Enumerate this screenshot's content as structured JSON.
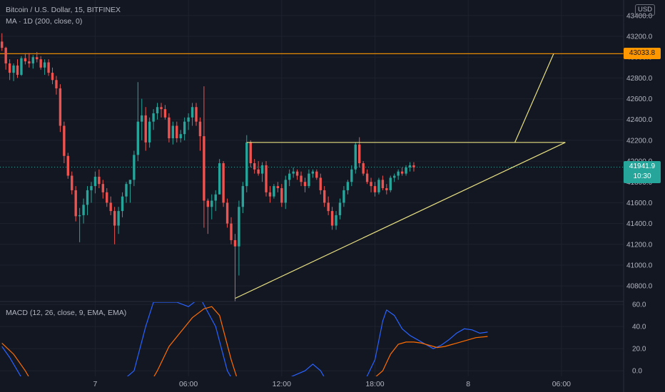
{
  "header": {
    "symbol_line": "Bitcoin / U.S. Dollar, 15, BITFINEX",
    "ma_line": "MA · 1D (200, close, 0)",
    "macd_line": "MACD (12, 26, close, 9, EMA, EMA)",
    "currency": "USD"
  },
  "price_tags": {
    "level_value": "43033.8",
    "current_price": "41941.9",
    "countdown": "10:30"
  },
  "colors": {
    "background": "#131722",
    "grid": "#1e222d",
    "up_candle": "#26a69a",
    "down_candle": "#ef5350",
    "horizontal_line": "#ff9800",
    "trend_lines": "#e8e082",
    "macd_line": "#2962ff",
    "signal_line": "#ff6d00"
  },
  "chart_data": [
    {
      "type": "candlestick",
      "y_axis_ticks": [
        "43400.0",
        "43200.0",
        "43000.0",
        "42800.0",
        "42600.0",
        "42400.0",
        "42200.0",
        "42000.0",
        "41800.0",
        "41600.0",
        "41400.0",
        "41200.0",
        "41000.0",
        "40800.0"
      ],
      "ylim": [
        40650,
        43550
      ],
      "x_axis_ticks": [
        {
          "label": "7",
          "index": 24
        },
        {
          "label": "06:00",
          "index": 48
        },
        {
          "label": "12:00",
          "index": 72
        },
        {
          "label": "18:00",
          "index": 96
        },
        {
          "label": "8",
          "index": 120
        },
        {
          "label": "06:00",
          "index": 144
        }
      ],
      "xlim": [
        -0.5,
        160
      ],
      "candles": [
        [
          43150,
          43230,
          43060,
          43090
        ],
        [
          43090,
          43100,
          42880,
          42940
        ],
        [
          42940,
          42980,
          42780,
          42850
        ],
        [
          42850,
          42940,
          42770,
          42920
        ],
        [
          42920,
          42980,
          42800,
          42830
        ],
        [
          42830,
          43010,
          42820,
          42990
        ],
        [
          42990,
          43040,
          42930,
          42960
        ],
        [
          42960,
          43040,
          42900,
          42940
        ],
        [
          42940,
          43020,
          42890,
          43000
        ],
        [
          43000,
          43050,
          42950,
          42980
        ],
        [
          42980,
          43010,
          42880,
          42900
        ],
        [
          42900,
          42980,
          42830,
          42950
        ],
        [
          42950,
          42980,
          42820,
          42850
        ],
        [
          42850,
          42900,
          42740,
          42780
        ],
        [
          42780,
          42820,
          42640,
          42700
        ],
        [
          42700,
          42740,
          42280,
          42340
        ],
        [
          42340,
          42380,
          41980,
          42050
        ],
        [
          42050,
          42080,
          41830,
          41860
        ],
        [
          41860,
          41900,
          41680,
          41720
        ],
        [
          41720,
          41760,
          41420,
          41470
        ],
        [
          41470,
          41550,
          41220,
          41480
        ],
        [
          41480,
          41640,
          41400,
          41580
        ],
        [
          41580,
          41760,
          41480,
          41720
        ],
        [
          41720,
          41800,
          41600,
          41760
        ],
        [
          41760,
          41900,
          41690,
          41850
        ],
        [
          41850,
          41920,
          41740,
          41780
        ],
        [
          41780,
          41820,
          41640,
          41700
        ],
        [
          41700,
          41740,
          41560,
          41600
        ],
        [
          41600,
          41660,
          41480,
          41520
        ],
        [
          41520,
          41560,
          41200,
          41380
        ],
        [
          41380,
          41560,
          41300,
          41520
        ],
        [
          41520,
          41700,
          41460,
          41660
        ],
        [
          41660,
          41800,
          41600,
          41780
        ],
        [
          41780,
          41820,
          41600,
          41820
        ],
        [
          41820,
          42100,
          41760,
          42060
        ],
        [
          42060,
          42760,
          42000,
          42380
        ],
        [
          42380,
          42600,
          42200,
          42440
        ],
        [
          42440,
          42520,
          42100,
          42180
        ],
        [
          42180,
          42420,
          42130,
          42380
        ],
        [
          42380,
          42500,
          42300,
          42460
        ],
        [
          42460,
          42560,
          42400,
          42520
        ],
        [
          42520,
          42560,
          42420,
          42500
        ],
        [
          42500,
          42540,
          42400,
          42420
        ],
        [
          42420,
          42460,
          42180,
          42220
        ],
        [
          42220,
          42380,
          42160,
          42340
        ],
        [
          42340,
          42380,
          42180,
          42220
        ],
        [
          42220,
          42300,
          42180,
          42260
        ],
        [
          42260,
          42420,
          42200,
          42380
        ],
        [
          42380,
          42460,
          42300,
          42420
        ],
        [
          42420,
          42560,
          42340,
          42520
        ],
        [
          42520,
          42560,
          42340,
          42380
        ],
        [
          42380,
          42420,
          42100,
          42240
        ],
        [
          42240,
          42720,
          41360,
          41620
        ],
        [
          41620,
          41640,
          41300,
          41560
        ],
        [
          41560,
          41680,
          41440,
          41620
        ],
        [
          41620,
          41720,
          41520,
          41680
        ],
        [
          41680,
          42020,
          41680,
          41980
        ],
        [
          41980,
          42000,
          41560,
          41600
        ],
        [
          41600,
          41640,
          41360,
          41400
        ],
        [
          41400,
          41460,
          41200,
          41240
        ],
        [
          41240,
          41300,
          40650,
          41180
        ],
        [
          41180,
          41620,
          40900,
          41560
        ],
        [
          41560,
          41800,
          41500,
          41760
        ],
        [
          41760,
          42250,
          41700,
          42180
        ],
        [
          42180,
          42200,
          41940,
          41980
        ],
        [
          41980,
          42020,
          41880,
          41920
        ],
        [
          41920,
          42000,
          41860,
          41880
        ],
        [
          41880,
          41990,
          41800,
          41960
        ],
        [
          41960,
          42000,
          41660,
          41700
        ],
        [
          41700,
          41760,
          41600,
          41660
        ],
        [
          41660,
          41780,
          41640,
          41760
        ],
        [
          41760,
          41800,
          41700,
          41740
        ],
        [
          41740,
          41780,
          41560,
          41600
        ],
        [
          41600,
          41860,
          41540,
          41820
        ],
        [
          41820,
          41920,
          41760,
          41880
        ],
        [
          41880,
          41940,
          41840,
          41900
        ],
        [
          41900,
          41920,
          41820,
          41860
        ],
        [
          41860,
          41900,
          41760,
          41800
        ],
        [
          41800,
          41840,
          41700,
          41760
        ],
        [
          41760,
          41920,
          41740,
          41880
        ],
        [
          41880,
          41920,
          41840,
          41900
        ],
        [
          41900,
          41920,
          41820,
          41840
        ],
        [
          41840,
          41880,
          41680,
          41720
        ],
        [
          41720,
          41760,
          41560,
          41600
        ],
        [
          41600,
          41660,
          41480,
          41520
        ],
        [
          41520,
          41560,
          41340,
          41380
        ],
        [
          41380,
          41520,
          41340,
          41480
        ],
        [
          41480,
          41640,
          41440,
          41600
        ],
        [
          41600,
          41760,
          41560,
          41720
        ],
        [
          41720,
          41820,
          41680,
          41800
        ],
        [
          41800,
          41960,
          41760,
          41920
        ],
        [
          41920,
          42180,
          41880,
          42160
        ],
        [
          42160,
          42230,
          41940,
          41980
        ],
        [
          41980,
          42000,
          41860,
          41880
        ],
        [
          41880,
          41920,
          41780,
          41800
        ],
        [
          41800,
          41840,
          41700,
          41760
        ],
        [
          41760,
          41800,
          41660,
          41700
        ],
        [
          41700,
          41840,
          41680,
          41820
        ],
        [
          41820,
          41860,
          41720,
          41740
        ],
        [
          41740,
          41780,
          41680,
          41720
        ],
        [
          41720,
          41860,
          41700,
          41840
        ],
        [
          41840,
          41880,
          41800,
          41860
        ],
        [
          41860,
          41920,
          41820,
          41900
        ],
        [
          41900,
          41940,
          41860,
          41880
        ],
        [
          41880,
          41960,
          41860,
          41940
        ],
        [
          41940,
          41990,
          41900,
          41960
        ],
        [
          41960,
          41990,
          41900,
          41940
        ]
      ],
      "horizontal_levels": [
        43033.8
      ],
      "current_price": 41941.9,
      "trend_lines": [
        {
          "from": [
            60,
            40680
          ],
          "to": [
            145,
            42180
          ]
        },
        {
          "from": [
            63,
            42180
          ],
          "to": [
            145,
            42180
          ]
        },
        {
          "from": [
            132,
            42180
          ],
          "to": [
            142,
            43033.8
          ]
        }
      ]
    },
    {
      "type": "line",
      "name": "MACD (12, 26, close, 9, EMA, EMA)",
      "y_axis_ticks": [
        "60.0",
        "40.0",
        "20.0",
        "0.0"
      ],
      "ylim": [
        -5,
        62
      ],
      "series": [
        {
          "name": "MACD",
          "points": [
            [
              0,
              22
            ],
            [
              2,
              12
            ],
            [
              4,
              0
            ],
            [
              6,
              -12
            ],
            [
              30,
              -12
            ],
            [
              34,
              0
            ],
            [
              37,
              40
            ],
            [
              39,
              62
            ],
            [
              45,
              62
            ],
            [
              48,
              58
            ],
            [
              51,
              66
            ],
            [
              55,
              40
            ],
            [
              58,
              0
            ],
            [
              60,
              -12
            ],
            [
              70,
              -12
            ],
            [
              78,
              0
            ],
            [
              80,
              6
            ],
            [
              82,
              0
            ],
            [
              84,
              -12
            ],
            [
              93,
              -12
            ],
            [
              96,
              10
            ],
            [
              98,
              45
            ],
            [
              99,
              55
            ],
            [
              101,
              50
            ],
            [
              103,
              38
            ],
            [
              105,
              32
            ],
            [
              107,
              28
            ],
            [
              109,
              24
            ],
            [
              111,
              20
            ],
            [
              113,
              23
            ],
            [
              115,
              28
            ],
            [
              117,
              34
            ],
            [
              119,
              38
            ],
            [
              121,
              37
            ],
            [
              123,
              34
            ],
            [
              125,
              35
            ]
          ]
        },
        {
          "name": "Signal",
          "points": [
            [
              0,
              25
            ],
            [
              3,
              15
            ],
            [
              6,
              0
            ],
            [
              8,
              -12
            ],
            [
              38,
              -12
            ],
            [
              40,
              0
            ],
            [
              43,
              22
            ],
            [
              46,
              35
            ],
            [
              49,
              48
            ],
            [
              52,
              56
            ],
            [
              54,
              58
            ],
            [
              56,
              50
            ],
            [
              59,
              10
            ],
            [
              61,
              -12
            ],
            [
              94,
              -12
            ],
            [
              98,
              0
            ],
            [
              100,
              15
            ],
            [
              102,
              24
            ],
            [
              104,
              26
            ],
            [
              106,
              26
            ],
            [
              108,
              25
            ],
            [
              110,
              23
            ],
            [
              112,
              21
            ],
            [
              114,
              22
            ],
            [
              116,
              24
            ],
            [
              118,
              26
            ],
            [
              120,
              28
            ],
            [
              122,
              30
            ],
            [
              125,
              31
            ]
          ]
        }
      ]
    }
  ]
}
